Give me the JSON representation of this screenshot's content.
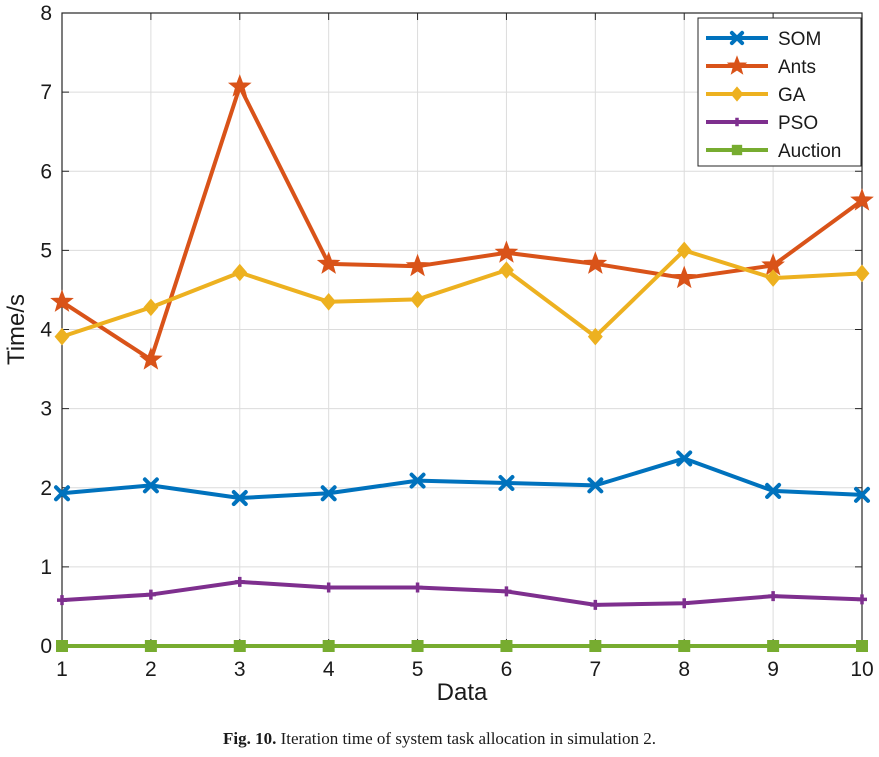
{
  "chart_data": {
    "type": "line",
    "xlabel": "Data",
    "ylabel": "Time/s",
    "x": [
      1,
      2,
      3,
      4,
      5,
      6,
      7,
      8,
      9,
      10
    ],
    "xlim": [
      1,
      10
    ],
    "ylim": [
      0,
      8
    ],
    "xticks": [
      1,
      2,
      3,
      4,
      5,
      6,
      7,
      8,
      9,
      10
    ],
    "yticks": [
      0,
      1,
      2,
      3,
      4,
      5,
      6,
      7,
      8
    ],
    "grid": true,
    "legend_position": "top-right",
    "series": [
      {
        "name": "SOM",
        "color": "#0072bd",
        "marker": "x",
        "values": [
          1.93,
          2.03,
          1.87,
          1.93,
          2.09,
          2.06,
          2.03,
          2.37,
          1.96,
          1.91
        ]
      },
      {
        "name": "Ants",
        "color": "#d95319",
        "marker": "star",
        "values": [
          4.35,
          3.62,
          7.07,
          4.83,
          4.8,
          4.97,
          4.83,
          4.65,
          4.81,
          5.63
        ]
      },
      {
        "name": "GA",
        "color": "#edb120",
        "marker": "diamond",
        "values": [
          3.91,
          4.28,
          4.72,
          4.35,
          4.38,
          4.75,
          3.91,
          5.0,
          4.65,
          4.71
        ]
      },
      {
        "name": "PSO",
        "color": "#7e2f8e",
        "marker": "plus",
        "values": [
          0.58,
          0.65,
          0.81,
          0.74,
          0.74,
          0.69,
          0.52,
          0.54,
          0.63,
          0.59
        ]
      },
      {
        "name": "Auction",
        "color": "#77ac30",
        "marker": "square",
        "values": [
          0,
          0,
          0,
          0,
          0,
          0,
          0,
          0,
          0,
          0
        ]
      }
    ]
  },
  "caption": {
    "label": "Fig. 10.",
    "text": "Iteration time of system task allocation in simulation 2."
  }
}
